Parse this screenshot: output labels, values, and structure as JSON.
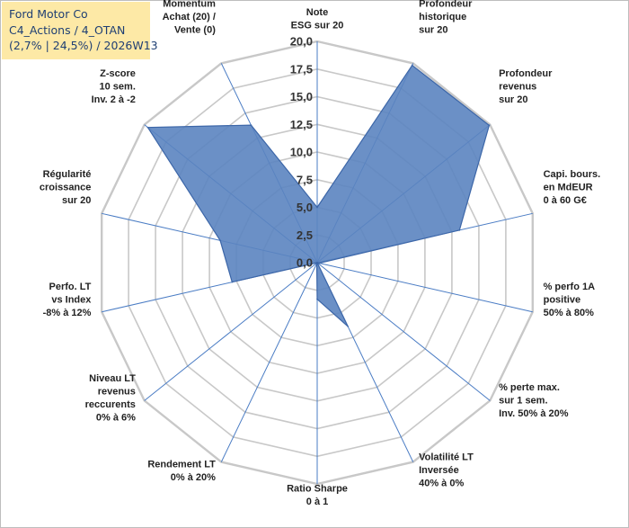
{
  "header": {
    "lines": [
      "Ford Motor Co",
      "C4_Actions / 4_OTAN",
      "(2,7% | 24,5%) / 2026W13"
    ]
  },
  "colors": {
    "grid": "#c8c8c8",
    "spoke": "#4a7cc4",
    "fill": "#5b84c0",
    "stroke": "#3c66a8",
    "title_bg": "#fde9a6"
  },
  "chart_data": {
    "type": "radar",
    "title": "",
    "rmin": 0,
    "rmax": 20,
    "tick_step": 2.5,
    "tick_labels": [
      "0,0",
      "2,5",
      "5,0",
      "7,5",
      "10,0",
      "12,5",
      "15,0",
      "17,5",
      "20,0"
    ],
    "axes": [
      {
        "label": [
          "Note",
          "ESG sur 20"
        ],
        "value": 5.0
      },
      {
        "label": [
          "Profondeur",
          "historique",
          "sur 20"
        ],
        "value": 19.8
      },
      {
        "label": [
          "Profondeur",
          "revenus",
          "sur 20"
        ],
        "value": 19.9
      },
      {
        "label": [
          "Capi. bours.",
          "en MdEUR",
          "0 à 60 G€"
        ],
        "value": 13.2
      },
      {
        "label": [
          "% perfo 1A",
          "positive",
          "50% à 80%"
        ],
        "value": 0.2
      },
      {
        "label": [
          "% perte max.",
          "sur 1 sem.",
          "Inv. 50% à 20%"
        ],
        "value": 0.0
      },
      {
        "label": [
          "Volatilité LT",
          "Inversée",
          "40% à 0%"
        ],
        "value": 6.4
      },
      {
        "label": [
          "Ratio Sharpe",
          "0 à 1"
        ],
        "value": 3.3
      },
      {
        "label": [
          "Rendement LT",
          "0% à 20%"
        ],
        "value": 0.1
      },
      {
        "label": [
          "Niveau LT",
          "revenus",
          "reccurents",
          "0% à 6%"
        ],
        "value": 0.0
      },
      {
        "label": [
          "Perfo. LT",
          "vs Index",
          "-8% à 12%"
        ],
        "value": 7.9
      },
      {
        "label": [
          "Régularité",
          "croissance",
          "sur 20"
        ],
        "value": 9.0
      },
      {
        "label": [
          "Z-score",
          "10 sem.",
          "Inv. 2 à -2"
        ],
        "value": 19.6
      },
      {
        "label": [
          "Momentum",
          "Achat (20) /",
          "Vente (0)"
        ],
        "value": 13.8
      }
    ]
  }
}
